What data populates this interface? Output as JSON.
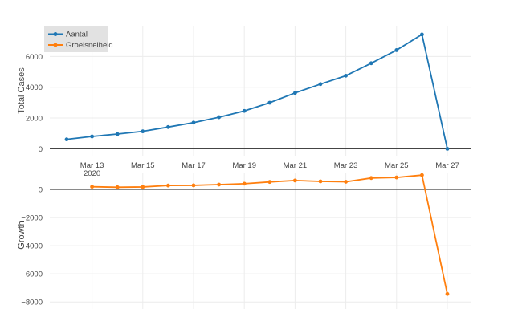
{
  "chart_data": [
    {
      "type": "line",
      "panel": "top",
      "ylabel": "Total Cases",
      "ylim": [
        -500,
        8000
      ],
      "yticks": [
        0,
        2000,
        4000,
        6000
      ],
      "ytick_labels": [
        "0",
        "2000",
        "4000",
        "6000"
      ],
      "grid": true,
      "x": [
        "2020-03-12",
        "2020-03-13",
        "2020-03-14",
        "2020-03-15",
        "2020-03-16",
        "2020-03-17",
        "2020-03-18",
        "2020-03-19",
        "2020-03-20",
        "2020-03-21",
        "2020-03-22",
        "2020-03-23",
        "2020-03-24",
        "2020-03-25",
        "2020-03-26",
        "2020-03-27"
      ],
      "series": [
        {
          "name": "Aantal",
          "color": "#1f77b4",
          "values": [
            614,
            804,
            959,
            1135,
            1413,
            1705,
            2051,
            2460,
            2994,
            3631,
            4204,
            4749,
            5560,
            6412,
            7431,
            0
          ]
        }
      ]
    },
    {
      "type": "line",
      "panel": "bottom",
      "ylabel": "Growth",
      "ylim": [
        -8500,
        1200
      ],
      "yticks": [
        0,
        -2000,
        -4000,
        -6000,
        -8000
      ],
      "ytick_labels": [
        "0",
        "−2000",
        "−4000",
        "−6000",
        "−8000"
      ],
      "grid": true,
      "x": [
        "2020-03-13",
        "2020-03-14",
        "2020-03-15",
        "2020-03-16",
        "2020-03-17",
        "2020-03-18",
        "2020-03-19",
        "2020-03-20",
        "2020-03-21",
        "2020-03-22",
        "2020-03-23",
        "2020-03-24",
        "2020-03-25",
        "2020-03-26",
        "2020-03-27"
      ],
      "series": [
        {
          "name": "Groeisnelheid",
          "color": "#ff7f0e",
          "values": [
            190,
            155,
            176,
            278,
            292,
            346,
            409,
            534,
            637,
            573,
            545,
            811,
            852,
            1019,
            -7431
          ]
        }
      ]
    }
  ],
  "xaxis": {
    "ticks": [
      "2020-03-13",
      "2020-03-15",
      "2020-03-17",
      "2020-03-19",
      "2020-03-21",
      "2020-03-23",
      "2020-03-25",
      "2020-03-27"
    ],
    "tick_labels": [
      "Mar 13",
      "Mar 15",
      "Mar 17",
      "Mar 19",
      "Mar 21",
      "Mar 23",
      "Mar 25",
      "Mar 27"
    ],
    "year_label": "2020"
  },
  "legend": {
    "position": "top-left",
    "entries": [
      {
        "label": "Aantal",
        "color": "#1f77b4"
      },
      {
        "label": "Groeisnelheid",
        "color": "#ff7f0e"
      }
    ]
  }
}
